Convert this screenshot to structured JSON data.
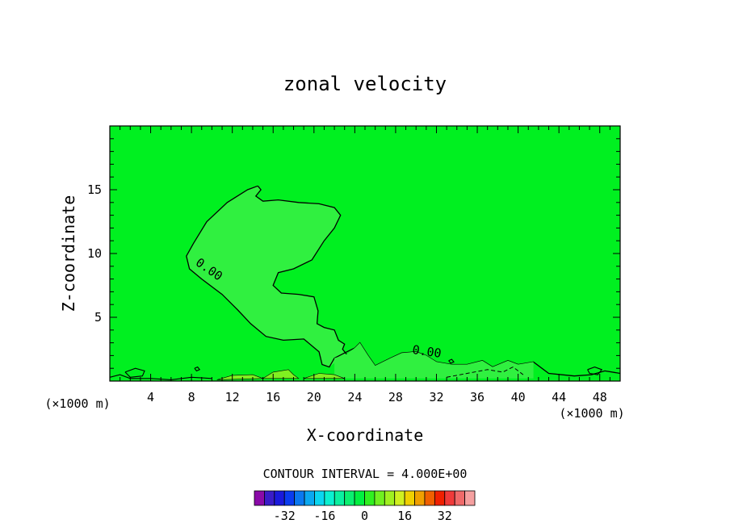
{
  "chart_data": {
    "type": "heatmap",
    "title": "zonal velocity",
    "xlabel": "X-coordinate",
    "ylabel": "Z-coordinate",
    "x_unit": "(×1000 m)",
    "x_ticks": [
      4,
      8,
      12,
      16,
      20,
      24,
      28,
      32,
      36,
      40,
      44,
      48
    ],
    "y_ticks": [
      5,
      10,
      15
    ],
    "xlim": [
      0,
      50
    ],
    "ylim": [
      0,
      20
    ],
    "contour_interval_text": "CONTOUR INTERVAL = 4.000E+00",
    "contour_interval": 4.0,
    "contour_labels": [
      {
        "text": "0.00",
        "x": 9.5,
        "z": 8.5
      },
      {
        "text": "0.00",
        "x": 31.0,
        "z": 2.0
      }
    ],
    "zero_contour": [
      [
        14.5,
        15.3
      ],
      [
        13.5,
        15.0
      ],
      [
        11.5,
        14.0
      ],
      [
        9.5,
        12.5
      ],
      [
        8.2,
        10.8
      ],
      [
        7.5,
        9.8
      ],
      [
        7.8,
        8.8
      ],
      [
        9.0,
        8.0
      ],
      [
        11.0,
        6.8
      ],
      [
        12.5,
        5.6
      ],
      [
        13.8,
        4.5
      ],
      [
        15.3,
        3.5
      ],
      [
        17.0,
        3.2
      ],
      [
        19.0,
        3.3
      ],
      [
        20.5,
        2.3
      ],
      [
        20.8,
        1.3
      ],
      [
        21.5,
        1.1
      ],
      [
        22.0,
        1.8
      ],
      [
        23.0,
        2.2
      ],
      [
        24.0,
        2.6
      ],
      [
        24.5,
        3.0
      ],
      [
        25.3,
        2.0
      ],
      [
        26.0,
        1.2
      ],
      [
        27.5,
        1.8
      ],
      [
        28.6,
        2.2
      ],
      [
        30.0,
        2.3
      ],
      [
        31.0,
        2.0
      ],
      [
        32.0,
        1.5
      ],
      [
        33.5,
        1.3
      ],
      [
        35.0,
        1.3
      ],
      [
        36.5,
        1.6
      ],
      [
        37.5,
        1.1
      ],
      [
        39.0,
        1.6
      ],
      [
        40.0,
        1.3
      ],
      [
        41.5,
        1.5
      ],
      [
        43.0,
        0.6
      ],
      [
        45.5,
        0.4
      ],
      [
        47.2,
        0.5
      ],
      [
        48.5,
        0.8
      ],
      [
        50.0,
        0.6
      ]
    ],
    "zero_contour_upper": [
      [
        14.5,
        15.3
      ],
      [
        14.8,
        15.0
      ],
      [
        14.3,
        14.5
      ],
      [
        15.0,
        14.1
      ],
      [
        16.5,
        14.2
      ],
      [
        18.5,
        14.0
      ],
      [
        20.5,
        13.9
      ],
      [
        22.0,
        13.6
      ],
      [
        22.6,
        13.0
      ],
      [
        22.0,
        12.0
      ],
      [
        21.0,
        11.0
      ],
      [
        19.8,
        9.5
      ],
      [
        18.0,
        8.8
      ],
      [
        16.5,
        8.5
      ],
      [
        16.0,
        7.5
      ],
      [
        16.8,
        6.9
      ],
      [
        18.5,
        6.8
      ],
      [
        20.0,
        6.6
      ],
      [
        20.4,
        5.5
      ],
      [
        20.3,
        4.5
      ],
      [
        21.0,
        4.2
      ],
      [
        22.0,
        4.0
      ],
      [
        22.4,
        3.2
      ],
      [
        23.0,
        2.9
      ],
      [
        22.8,
        2.5
      ],
      [
        23.2,
        2.1
      ]
    ],
    "colorbar": {
      "tick_labels": [
        "-32",
        "-16",
        "0",
        "16",
        "32"
      ],
      "colors": [
        "#8a0aa8",
        "#3a1cc8",
        "#1a1adc",
        "#0a3cf0",
        "#0a78f0",
        "#0aa8f0",
        "#0ad6f0",
        "#0af0d0",
        "#0af0a0",
        "#0af070",
        "#00f040",
        "#30f020",
        "#70f020",
        "#a0f020",
        "#d0f020",
        "#f0d000",
        "#f0a000",
        "#f06000",
        "#f02000",
        "#f03a3a",
        "#f06a6a",
        "#f5a0a0"
      ]
    },
    "background_fill": "#00f020",
    "negative_fill": "#30f040",
    "positive_fill": "#80f020",
    "grid": false
  }
}
